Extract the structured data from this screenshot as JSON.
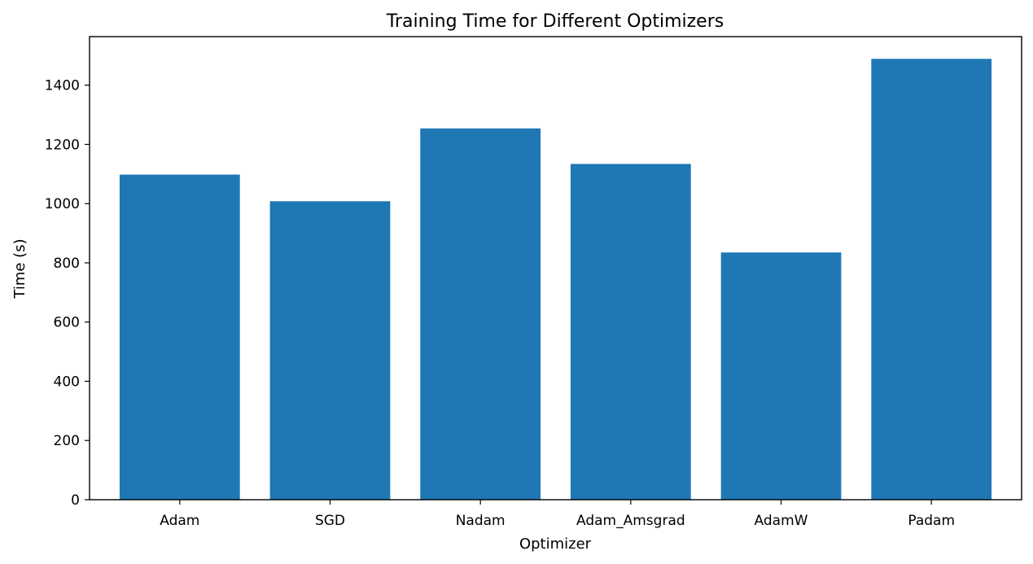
{
  "chart_data": {
    "type": "bar",
    "title": "Training Time for Different Optimizers",
    "xlabel": "Optimizer",
    "ylabel": "Time (s)",
    "categories": [
      "Adam",
      "SGD",
      "Nadam",
      "Adam_Amsgrad",
      "AdamW",
      "Padam"
    ],
    "values": [
      1098,
      1008,
      1254,
      1134,
      835,
      1489
    ],
    "ylim": [
      0,
      1564
    ],
    "yticks": [
      0,
      200,
      400,
      600,
      800,
      1000,
      1200,
      1400
    ],
    "bar_color": "#1f77b4",
    "grid": false,
    "legend": "none"
  }
}
